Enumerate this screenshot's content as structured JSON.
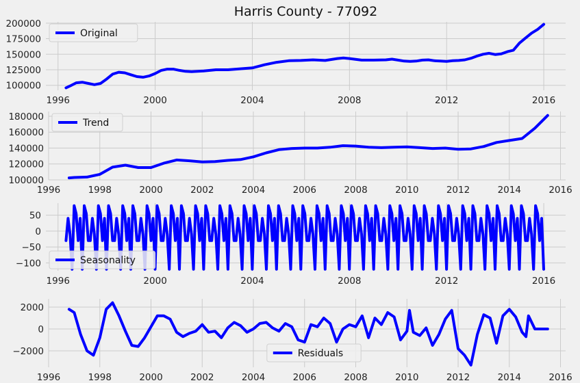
{
  "chart_data": [
    {
      "type": "line",
      "title": "Harris County - 77092",
      "series": [
        {
          "name": "Original",
          "color": "#0000ff"
        }
      ],
      "xlim": [
        1995.5,
        2016.9
      ],
      "ylim": [
        92000,
        202000
      ],
      "xticks": [
        1996,
        2000,
        2004,
        2008,
        2012,
        2016
      ],
      "yticks": [
        100000,
        125000,
        150000,
        175000,
        200000
      ],
      "legend": "top-left",
      "grid": true,
      "x": [
        1996.33,
        1996.5,
        1996.75,
        1997.0,
        1997.25,
        1997.5,
        1997.75,
        1998.0,
        1998.25,
        1998.5,
        1998.75,
        1999.0,
        1999.25,
        1999.5,
        1999.75,
        2000.0,
        2000.25,
        2000.5,
        2000.75,
        2001.0,
        2001.25,
        2001.5,
        2001.75,
        2002.0,
        2002.5,
        2003.0,
        2003.5,
        2004.0,
        2004.5,
        2005.0,
        2005.5,
        2006.0,
        2006.5,
        2007.0,
        2007.5,
        2007.75,
        2008.0,
        2008.5,
        2009.0,
        2009.5,
        2009.75,
        2010.0,
        2010.25,
        2010.5,
        2010.75,
        2011.0,
        2011.25,
        2011.5,
        2011.75,
        2012.0,
        2012.25,
        2012.5,
        2012.75,
        2013.0,
        2013.25,
        2013.5,
        2013.75,
        2014.0,
        2014.25,
        2014.5,
        2014.75,
        2015.0,
        2015.25,
        2015.5,
        2015.75,
        2016.0
      ],
      "values": [
        96000,
        99000,
        104000,
        105000,
        103000,
        101000,
        103000,
        110000,
        118000,
        121000,
        120000,
        117000,
        114000,
        113000,
        115000,
        119000,
        124000,
        126000,
        126000,
        124000,
        122500,
        122000,
        122500,
        123000,
        125000,
        125000,
        126500,
        128000,
        133000,
        137000,
        139500,
        140000,
        141000,
        140000,
        143000,
        144000,
        143000,
        140500,
        140500,
        141000,
        142000,
        140500,
        139000,
        138500,
        139000,
        140500,
        141000,
        139500,
        139000,
        138500,
        139500,
        140000,
        141000,
        143500,
        147000,
        150000,
        151500,
        149500,
        150500,
        154000,
        156500,
        168000,
        176000,
        184000,
        190000,
        198000
      ]
    },
    {
      "type": "line",
      "series": [
        {
          "name": "Trend",
          "color": "#0000ff"
        }
      ],
      "xlim": [
        1996.0,
        2016.2
      ],
      "ylim": [
        100000,
        186000
      ],
      "xticks": [
        1996,
        1998,
        2000,
        2002,
        2004,
        2006,
        2008,
        2010,
        2012,
        2014,
        2016
      ],
      "yticks": [
        100000,
        120000,
        140000,
        160000,
        180000
      ],
      "legend": "top-left",
      "grid": true,
      "x": [
        1996.8,
        1997.0,
        1997.5,
        1998.0,
        1998.5,
        1999.0,
        1999.5,
        2000.0,
        2000.5,
        2001.0,
        2001.5,
        2002.0,
        2002.5,
        2003.0,
        2003.5,
        2004.0,
        2004.5,
        2005.0,
        2005.5,
        2006.0,
        2006.5,
        2007.0,
        2007.5,
        2008.0,
        2008.5,
        2009.0,
        2009.5,
        2010.0,
        2010.5,
        2011.0,
        2011.5,
        2012.0,
        2012.5,
        2013.0,
        2013.5,
        2014.0,
        2014.5,
        2015.0,
        2015.5
      ],
      "values": [
        102500,
        103000,
        103500,
        107000,
        116000,
        118500,
        115500,
        115500,
        121000,
        125000,
        124000,
        122500,
        123000,
        124500,
        125500,
        129000,
        134000,
        138000,
        139500,
        140000,
        140000,
        141000,
        143000,
        142500,
        141000,
        140500,
        141000,
        141500,
        140500,
        139500,
        140000,
        138500,
        139000,
        142000,
        147000,
        149500,
        152000,
        165000,
        181000
      ]
    },
    {
      "type": "line",
      "series": [
        {
          "name": "Seasonality",
          "color": "#0000ff"
        }
      ],
      "xlim": [
        1995.5,
        2016.9
      ],
      "ylim": [
        -125,
        88
      ],
      "xticks": [
        1996,
        2000,
        2004,
        2008,
        2012,
        2016
      ],
      "yticks": [
        -100,
        -50,
        0,
        50
      ],
      "legend": "bottom-left",
      "grid": true,
      "period_start": 1996.33,
      "period_end": 2016.0,
      "monthly_pattern": [
        -30,
        40,
        -10,
        -120,
        80,
        55,
        -30,
        40,
        -120,
        80,
        55,
        -30
      ]
    },
    {
      "type": "line",
      "series": [
        {
          "name": "Residuals",
          "color": "#0000ff"
        }
      ],
      "xlim": [
        1996.0,
        2016.2
      ],
      "ylim": [
        -3500,
        2750
      ],
      "xticks": [
        1996,
        1998,
        2000,
        2002,
        2004,
        2006,
        2008,
        2010,
        2012,
        2014,
        2016
      ],
      "yticks": [
        -2000,
        0,
        2000
      ],
      "legend": "bottom-center",
      "grid": true,
      "x": [
        1996.8,
        1997.0,
        1997.25,
        1997.5,
        1997.75,
        1998.0,
        1998.25,
        1998.5,
        1998.75,
        1999.0,
        1999.25,
        1999.5,
        1999.75,
        2000.0,
        2000.25,
        2000.5,
        2000.75,
        2001.0,
        2001.25,
        2001.5,
        2001.75,
        2002.0,
        2002.25,
        2002.5,
        2002.75,
        2003.0,
        2003.25,
        2003.5,
        2003.75,
        2004.0,
        2004.25,
        2004.5,
        2004.75,
        2005.0,
        2005.25,
        2005.5,
        2005.75,
        2006.0,
        2006.25,
        2006.5,
        2006.75,
        2007.0,
        2007.25,
        2007.5,
        2007.75,
        2008.0,
        2008.25,
        2008.5,
        2008.75,
        2009.0,
        2009.25,
        2009.5,
        2009.75,
        2010.0,
        2010.1,
        2010.25,
        2010.5,
        2010.75,
        2011.0,
        2011.25,
        2011.5,
        2011.75,
        2012.0,
        2012.25,
        2012.5,
        2012.75,
        2013.0,
        2013.25,
        2013.5,
        2013.75,
        2014.0,
        2014.25,
        2014.5,
        2014.65,
        2014.75,
        2015.0,
        2015.25,
        2015.5
      ],
      "values": [
        1800,
        1500,
        -500,
        -2000,
        -2400,
        -800,
        1800,
        2400,
        1200,
        -200,
        -1500,
        -1600,
        -800,
        200,
        1200,
        1200,
        900,
        -300,
        -700,
        -400,
        -200,
        400,
        -300,
        -200,
        -800,
        100,
        600,
        300,
        -300,
        0,
        500,
        600,
        100,
        -200,
        500,
        200,
        -1000,
        -1200,
        400,
        200,
        1000,
        500,
        -1200,
        0,
        400,
        200,
        1200,
        -800,
        1000,
        400,
        1500,
        1100,
        -1000,
        -200,
        1700,
        -300,
        -600,
        100,
        -1500,
        -500,
        900,
        1700,
        -1800,
        -2400,
        -3300,
        -500,
        1300,
        1000,
        -1300,
        1200,
        1800,
        1100,
        -300,
        -700,
        1200,
        0,
        0,
        0
      ]
    }
  ]
}
